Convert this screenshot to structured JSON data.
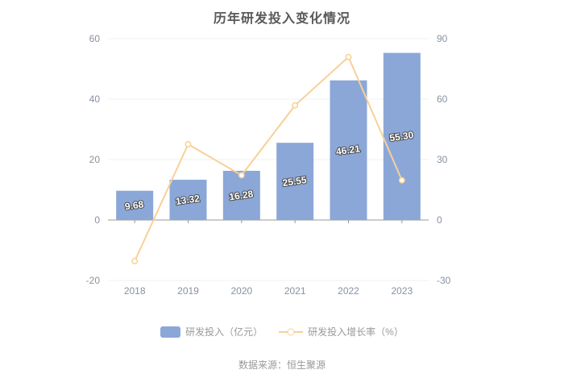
{
  "title": "历年研发投入变化情况",
  "footer": {
    "source": "数据来源：恒生聚源"
  },
  "legend": [
    {
      "label": "研发投入（亿元）",
      "swatch": "bar"
    },
    {
      "label": "研发投入增长率（%）",
      "swatch": "line"
    }
  ],
  "chart_data": {
    "type": "bar",
    "subtype": "bar-line-combo",
    "title": "历年研发投入变化情况",
    "categories": [
      "2018",
      "2019",
      "2020",
      "2021",
      "2022",
      "2023"
    ],
    "series": [
      {
        "name": "研发投入（亿元）",
        "type": "bar",
        "axis": "left",
        "values": [
          9.68,
          13.32,
          16.28,
          25.55,
          46.21,
          55.3
        ],
        "labels": [
          "9.68",
          "13.32",
          "16.28",
          "25.55",
          "46.21",
          "55.30"
        ],
        "color": "#8BA7D8"
      },
      {
        "name": "研发投入增长率（%）",
        "type": "line",
        "axis": "right",
        "values": [
          -20.4,
          37.6,
          22.2,
          56.9,
          80.9,
          19.7
        ],
        "color": "#F8D096"
      }
    ],
    "left_axis": {
      "min": -20,
      "max": 60,
      "ticks": [
        60,
        40,
        20,
        0,
        -20
      ]
    },
    "right_axis": {
      "min": -30,
      "max": 90,
      "ticks": [
        90,
        60,
        30,
        0,
        -30
      ]
    },
    "grid": true,
    "legend_position": "bottom",
    "xlabel": "",
    "ylabel": ""
  },
  "colors": {
    "bar": "#8BA7D8",
    "line": "#F8D096",
    "title_text": "#595959",
    "axis_text": "#8792A0",
    "grid": "#EDF0F6",
    "axis_line": "#999999",
    "legend_text": "#999999",
    "label_text": "#FFFFFF",
    "label_outline": "#4A4A4A",
    "background": "#FFFFFF"
  }
}
